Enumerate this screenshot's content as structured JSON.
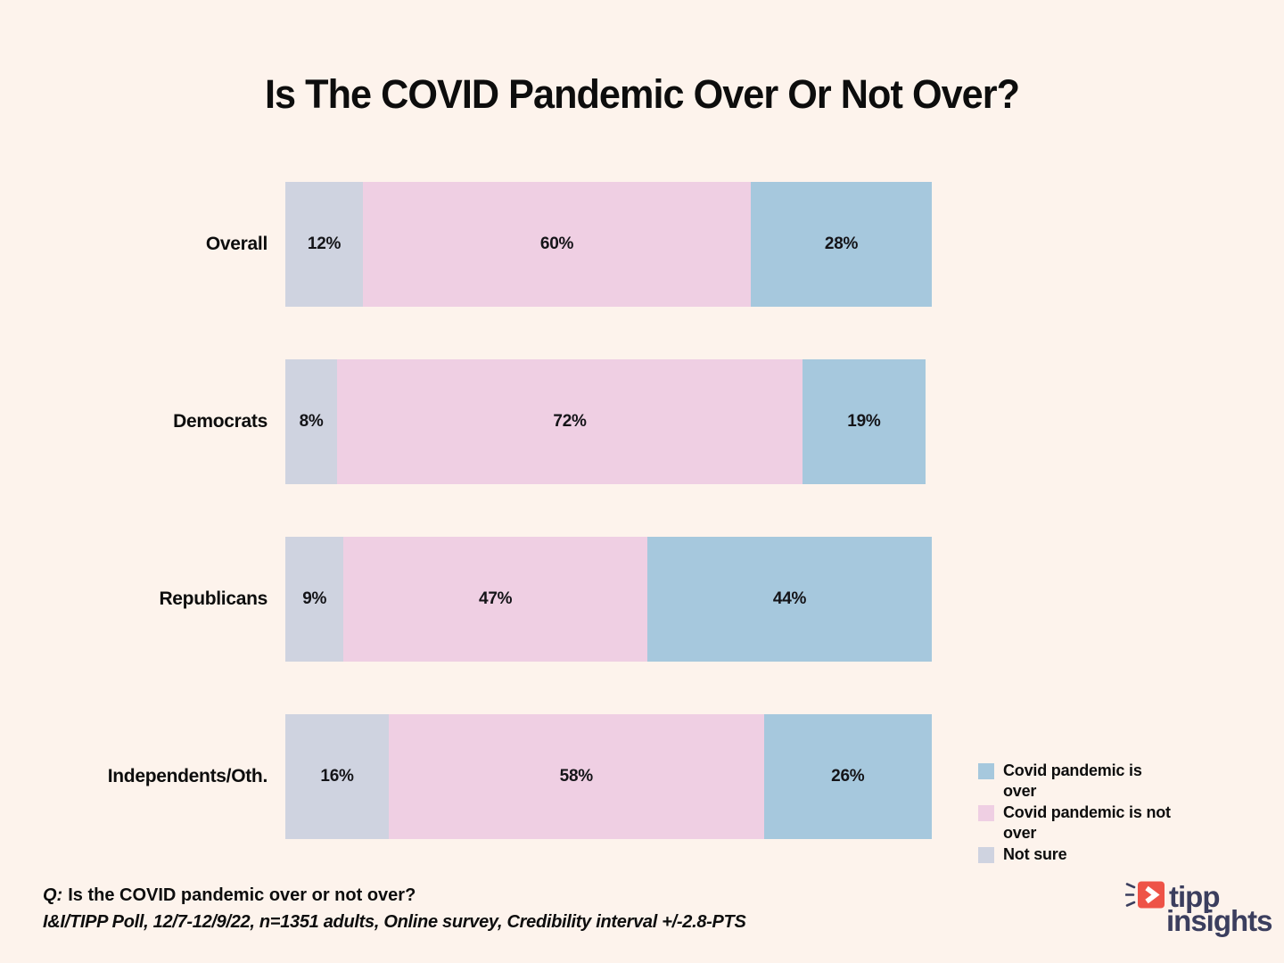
{
  "title": "Is The COVID Pandemic Over Or Not Over?",
  "chart_data": {
    "type": "bar",
    "orientation": "horizontal",
    "stacked": true,
    "title": "Is The COVID Pandemic Over Or Not Over?",
    "categories": [
      "Overall",
      "Democrats",
      "Republicans",
      "Independents/Oth."
    ],
    "series": [
      {
        "name": "Not sure",
        "color": "#cfd3e0",
        "values": [
          12,
          8,
          9,
          16
        ]
      },
      {
        "name": "Covid pandemic is not over",
        "color": "#efcfe3",
        "values": [
          60,
          72,
          47,
          58
        ]
      },
      {
        "name": "Covid pandemic is over",
        "color": "#a6c8dd",
        "values": [
          28,
          19,
          44,
          26
        ]
      }
    ],
    "value_suffix": "%",
    "xlim": [
      0,
      100
    ],
    "grid": false,
    "legend_position": "bottom-right",
    "legend": [
      {
        "label": "Covid pandemic is\nover",
        "color": "#a6c8dd"
      },
      {
        "label": "Covid pandemic is not\nover",
        "color": "#efcfe3"
      },
      {
        "label": "Not sure",
        "color": "#cfd3e0"
      }
    ]
  },
  "footer": {
    "q_prefix": "Q:",
    "question": "Is the COVID pandemic over or not over?",
    "source": "I&I/TIPP Poll, 12/7-12/9/22, n=1351 adults, Online survey, Credibility interval +/-2.8-PTS"
  },
  "logo": {
    "line1": "tipp",
    "line2": "insights"
  },
  "colors": {
    "background": "#fdf3ec",
    "text": "#0d0d0d",
    "not_sure": "#cfd3e0",
    "not_over": "#efcfe3",
    "over": "#a6c8dd",
    "logo_red": "#ee5347",
    "logo_navy": "#3b3e5e"
  }
}
